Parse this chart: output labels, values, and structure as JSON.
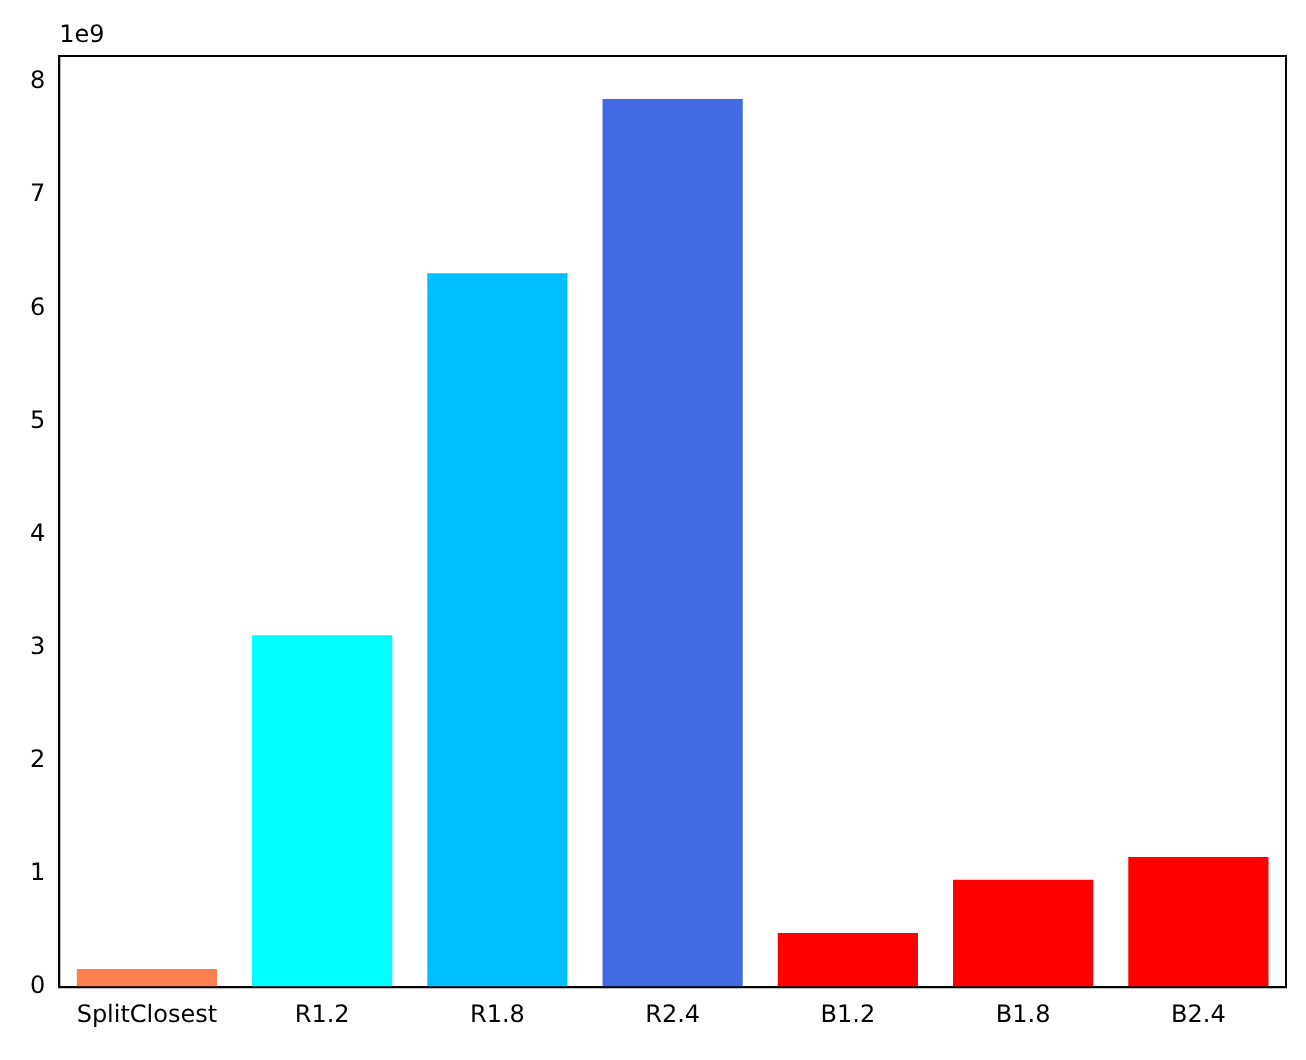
{
  "chart_data": {
    "type": "bar",
    "categories": [
      "SplitClosest",
      "R1.2",
      "R1.8",
      "R2.4",
      "B1.2",
      "B1.8",
      "B2.4"
    ],
    "values": [
      0.16,
      3.11,
      6.31,
      7.85,
      0.48,
      0.95,
      1.15
    ],
    "colors": [
      "#ff7f50",
      "#00ffff",
      "#00bfff",
      "#4169e1",
      "#ff0000",
      "#ff0000",
      "#ff0000"
    ],
    "ylim": [
      0,
      8.23
    ],
    "yticks": [
      0,
      1,
      2,
      3,
      4,
      5,
      6,
      7,
      8
    ],
    "annotations": [
      "1e9"
    ],
    "grid": false,
    "legend": false
  }
}
